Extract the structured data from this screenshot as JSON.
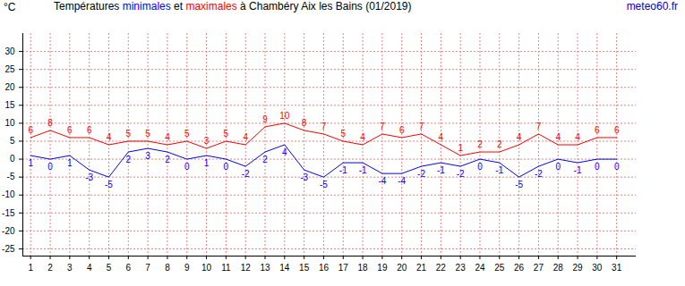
{
  "chart_data": {
    "type": "line",
    "title": "Températures minimales et maximales à Chambéry Aix les Bains (01/2019)",
    "source": "meteo60.fr",
    "ylabel": "°C",
    "x": [
      1,
      2,
      3,
      4,
      5,
      6,
      7,
      8,
      9,
      10,
      11,
      12,
      13,
      14,
      15,
      16,
      17,
      18,
      19,
      20,
      21,
      22,
      23,
      24,
      25,
      26,
      27,
      28,
      29,
      30,
      31
    ],
    "series": [
      {
        "name": "maximales",
        "color": "#ff0000",
        "values": [
          6,
          8,
          6,
          6,
          4,
          5,
          5,
          4,
          5,
          3,
          5,
          4,
          9,
          10,
          8,
          7,
          5,
          4,
          7,
          6,
          7,
          4,
          1,
          2,
          2,
          4,
          7,
          4,
          4,
          6,
          6
        ]
      },
      {
        "name": "minimales",
        "color": "#0000ff",
        "values": [
          1,
          0,
          1,
          -3,
          -5,
          2,
          3,
          2,
          0,
          1,
          0,
          -2,
          2,
          4,
          -3,
          -5,
          -1,
          -1,
          -4,
          -4,
          -2,
          -1,
          -2,
          0,
          -1,
          -5,
          -2,
          0,
          -1,
          0,
          0
        ]
      }
    ],
    "xlim": [
      0.6,
      32
    ],
    "xticks": [
      1,
      2,
      3,
      4,
      5,
      6,
      7,
      8,
      9,
      10,
      11,
      12,
      13,
      14,
      15,
      16,
      17,
      18,
      19,
      20,
      21,
      22,
      23,
      24,
      25,
      26,
      27,
      28,
      29,
      30,
      31
    ],
    "ylim": [
      -27,
      35
    ],
    "yticks": [
      -25,
      -20,
      -15,
      -10,
      -5,
      0,
      5,
      10,
      15,
      20,
      25,
      30
    ],
    "grid": true,
    "data_labels": true
  }
}
